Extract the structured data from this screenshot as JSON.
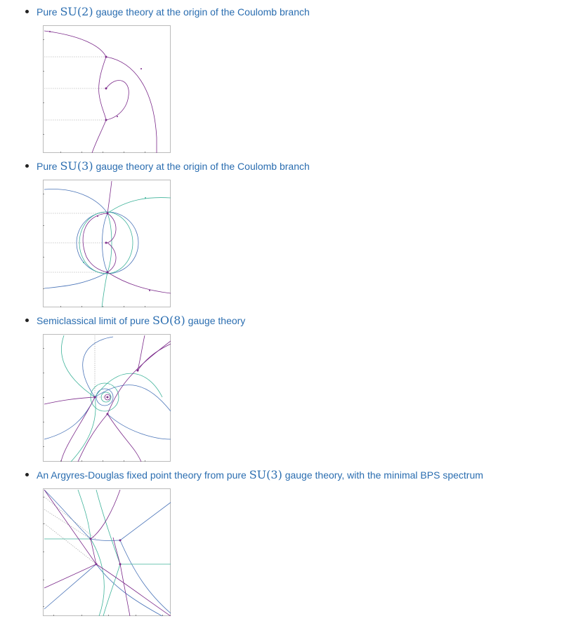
{
  "colors": {
    "link": "#2a6db0",
    "purple": "#7b2a8a",
    "teal": "#3fb39a",
    "blue": "#4a74b8",
    "grid": "#9a9a9a"
  },
  "items": [
    {
      "pre": "Pure ",
      "math": "SU(2)",
      "post": " gauge theory at the origin of the Coulomb branch"
    },
    {
      "pre": "Pure ",
      "math": "SU(3)",
      "post": " gauge theory at the origin of the Coulomb branch"
    },
    {
      "pre": "Semiclassical limit of pure ",
      "math": "SO(8)",
      "post": " gauge theory"
    },
    {
      "pre": "An Argyres-Douglas fixed point theory from pure ",
      "math": "SU(3)",
      "post": " gauge theory, with the minimal BPS spectrum"
    }
  ]
}
